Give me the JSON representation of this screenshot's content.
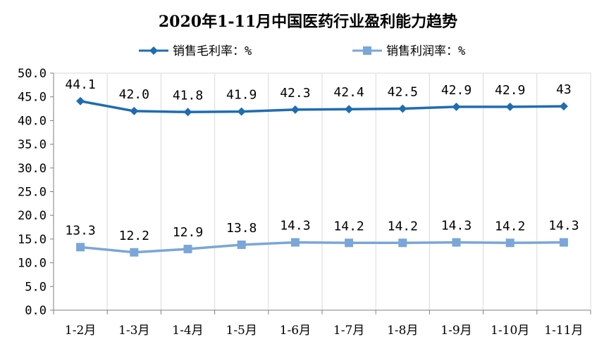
{
  "chart_data": {
    "type": "line",
    "title": "2020年1-11月中国医药行业盈利能力趋势",
    "xlabel": "",
    "ylabel": "",
    "ylim": [
      0,
      50
    ],
    "yticks": [
      "0.0",
      "5.0",
      "10.0",
      "15.0",
      "20.0",
      "25.0",
      "30.0",
      "35.0",
      "40.0",
      "45.0",
      "50.0"
    ],
    "categories": [
      "1-2月",
      "1-3月",
      "1-4月",
      "1-5月",
      "1-6月",
      "1-7月",
      "1-8月",
      "1-9月",
      "1-10月",
      "1-11月"
    ],
    "legend_position": "top",
    "grid": "vertical-category-separators",
    "series": [
      {
        "name": "销售毛利率：%",
        "marker": "diamond",
        "color": "#1f6cb3",
        "values": [
          44.1,
          42.0,
          41.8,
          41.9,
          42.3,
          42.4,
          42.5,
          42.9,
          42.9,
          43
        ],
        "labels": [
          "44.1",
          "42.0",
          "41.8",
          "41.9",
          "42.3",
          "42.4",
          "42.5",
          "42.9",
          "42.9",
          "43"
        ]
      },
      {
        "name": "销售利润率：%",
        "marker": "square",
        "color": "#7aa6d8",
        "values": [
          13.3,
          12.2,
          12.9,
          13.8,
          14.3,
          14.2,
          14.2,
          14.3,
          14.2,
          14.3
        ],
        "labels": [
          "13.3",
          "12.2",
          "12.9",
          "13.8",
          "14.3",
          "14.2",
          "14.2",
          "14.3",
          "14.2",
          "14.3"
        ]
      }
    ]
  }
}
